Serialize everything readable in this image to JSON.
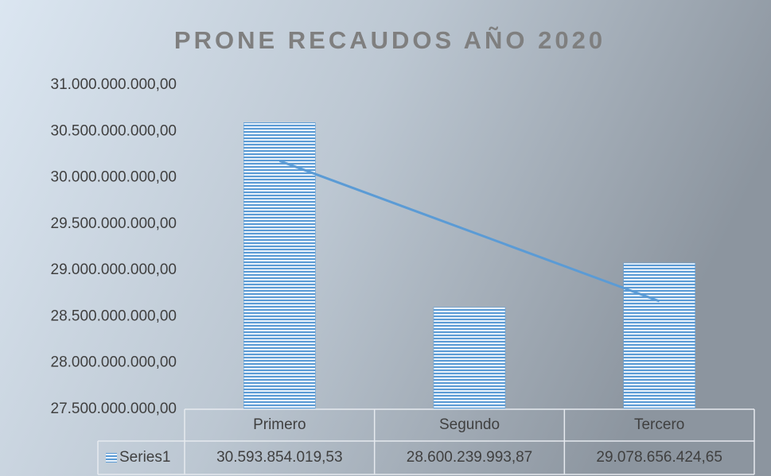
{
  "chart_data": {
    "type": "bar",
    "title": "PRONE RECAUDOS AÑO 2020",
    "categories": [
      "Primero",
      "Segundo",
      "Tercero"
    ],
    "series": [
      {
        "name": "Series1",
        "color": "#5b9bd5",
        "values": [
          30593854019.53,
          28600239993.87,
          29078656424.65
        ],
        "value_labels": [
          "30.593.854.019,53",
          "28.600.239.993,87",
          "29.078.656.424,65"
        ]
      }
    ],
    "ylim": [
      27500000000,
      31000000000
    ],
    "yticks": [
      {
        "value": 27500000000,
        "label": "27.500.000.000,00"
      },
      {
        "value": 28000000000,
        "label": "28.000.000.000,00"
      },
      {
        "value": 28500000000,
        "label": "28.500.000.000,00"
      },
      {
        "value": 29000000000,
        "label": "29.000.000.000,00"
      },
      {
        "value": 29500000000,
        "label": "29.500.000.000,00"
      },
      {
        "value": 30000000000,
        "label": "30.000.000.000,00"
      },
      {
        "value": 30500000000,
        "label": "30.500.000.000,00"
      },
      {
        "value": 31000000000,
        "label": "31.000.000.000,00"
      }
    ],
    "grid": false,
    "trendline": "linear",
    "data_table": true
  }
}
